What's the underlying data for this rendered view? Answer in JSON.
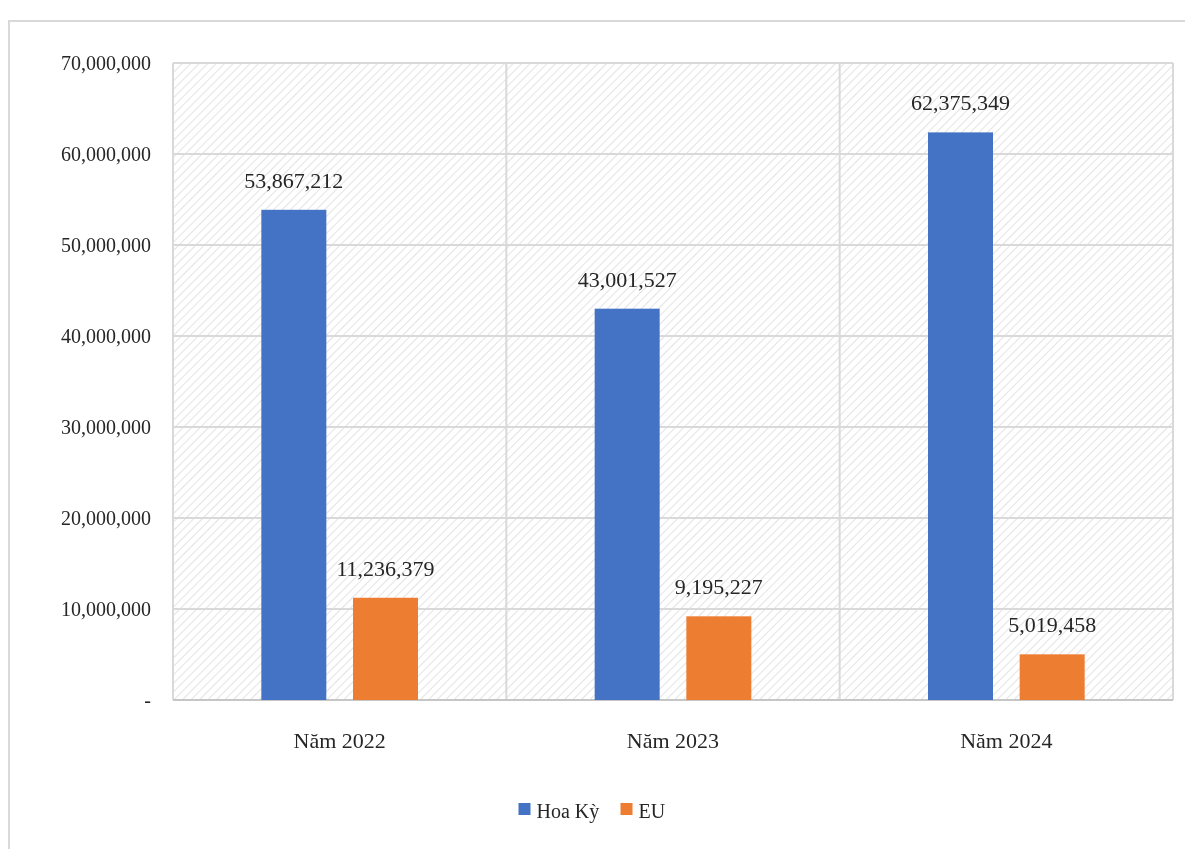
{
  "chart_data": {
    "type": "bar",
    "categories": [
      "Năm 2022",
      "Năm 2023",
      "Năm 2024"
    ],
    "series": [
      {
        "name": "Hoa Kỳ",
        "color": "#4472c4",
        "values": [
          53867212,
          43001527,
          62375349
        ],
        "value_labels": [
          "53,867,212",
          "43,001,527",
          "62,375,349"
        ]
      },
      {
        "name": "EU",
        "color": "#ed7d31",
        "values": [
          11236379,
          9195227,
          5019458
        ],
        "value_labels": [
          "11,236,379",
          "9,195,227",
          "5,019,458"
        ]
      }
    ],
    "ylim": [
      0,
      70000000
    ],
    "yticks": [
      {
        "value": 0,
        "label": "-"
      },
      {
        "value": 10000000,
        "label": "10,000,000"
      },
      {
        "value": 20000000,
        "label": "20,000,000"
      },
      {
        "value": 30000000,
        "label": "30,000,000"
      },
      {
        "value": 40000000,
        "label": "40,000,000"
      },
      {
        "value": 50000000,
        "label": "50,000,000"
      },
      {
        "value": 60000000,
        "label": "60,000,000"
      },
      {
        "value": 70000000,
        "label": "70,000,000"
      }
    ],
    "grid": true,
    "legend": "bottom"
  }
}
